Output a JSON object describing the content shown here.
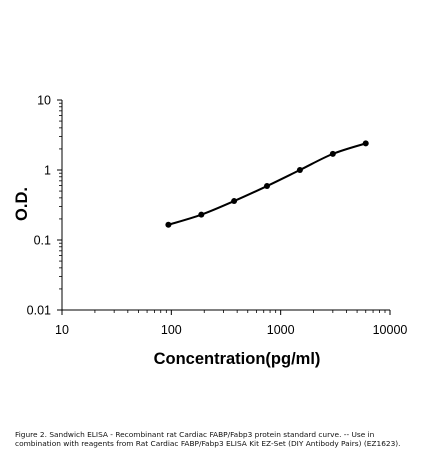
{
  "chart_data": {
    "type": "line",
    "xscale": "log",
    "yscale": "log",
    "xlim": [
      10,
      10000
    ],
    "ylim": [
      0.01,
      10
    ],
    "xlabel": "Concentration(pg/ml)",
    "ylabel": "O.D.",
    "x_tick_labels": [
      "10",
      "100",
      "1000",
      "10000"
    ],
    "y_tick_labels": [
      "0.01",
      "0.1",
      "1",
      "10"
    ],
    "series": [
      {
        "x": [
          94,
          188,
          375,
          750,
          1500,
          3000,
          6000
        ],
        "y": [
          0.165,
          0.23,
          0.36,
          0.59,
          1.0,
          1.7,
          2.4
        ]
      }
    ],
    "line_color": "#000000",
    "marker": "circle",
    "grid": false
  },
  "caption": "Figure 2. Sandwich ELISA - Recombinant rat Cardiac FABP/Fabp3 protein standard curve. -- Use in combination with reagents from Rat Cardiac FABP/Fabp3 ELISA Kit EZ-Set (DIY Antibody Pairs) (EZ1623)."
}
